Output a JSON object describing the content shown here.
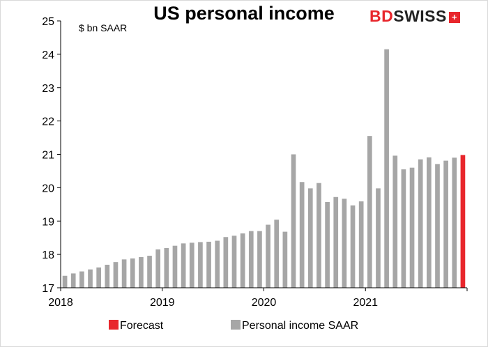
{
  "title": "US personal income",
  "logo": {
    "brand_a": "BD",
    "brand_b": "SWISS",
    "flag": "+"
  },
  "chart_data": {
    "type": "bar",
    "title": "US personal income",
    "unit_label": "$ bn SAAR",
    "ylim": [
      17,
      25
    ],
    "yticks": [
      17,
      18,
      19,
      20,
      21,
      22,
      23,
      24,
      25
    ],
    "xticks": [
      "2018",
      "2019",
      "2020",
      "2021"
    ],
    "grid": false,
    "legend_position": "bottom",
    "series": [
      {
        "name": "Personal income SAAR",
        "color": "#a6a6a6",
        "categories": [
          "2018-01",
          "2018-02",
          "2018-03",
          "2018-04",
          "2018-05",
          "2018-06",
          "2018-07",
          "2018-08",
          "2018-09",
          "2018-10",
          "2018-11",
          "2018-12",
          "2019-01",
          "2019-02",
          "2019-03",
          "2019-04",
          "2019-05",
          "2019-06",
          "2019-07",
          "2019-08",
          "2019-09",
          "2019-10",
          "2019-11",
          "2019-12",
          "2020-01",
          "2020-02",
          "2020-03",
          "2020-04",
          "2020-05",
          "2020-06",
          "2020-07",
          "2020-08",
          "2020-09",
          "2020-10",
          "2020-11",
          "2020-12",
          "2021-01",
          "2021-02",
          "2021-03",
          "2021-04",
          "2021-05",
          "2021-06",
          "2021-07",
          "2021-08",
          "2021-09",
          "2021-10",
          "2021-11"
        ],
        "values": [
          17.36,
          17.43,
          17.49,
          17.55,
          17.61,
          17.69,
          17.77,
          17.85,
          17.88,
          17.92,
          17.96,
          18.15,
          18.19,
          18.26,
          18.33,
          18.35,
          18.37,
          18.38,
          18.41,
          18.52,
          18.56,
          18.63,
          18.7,
          18.7,
          18.89,
          19.04,
          18.68,
          21.0,
          20.17,
          19.98,
          20.14,
          19.57,
          19.72,
          19.67,
          19.47,
          19.59,
          21.55,
          19.98,
          24.15,
          20.96,
          20.55,
          20.6,
          20.85,
          20.91,
          20.71,
          20.81,
          20.9
        ]
      },
      {
        "name": "Forecast",
        "color": "#e8262c",
        "categories": [
          "2021-12"
        ],
        "values": [
          20.98
        ]
      }
    ]
  }
}
